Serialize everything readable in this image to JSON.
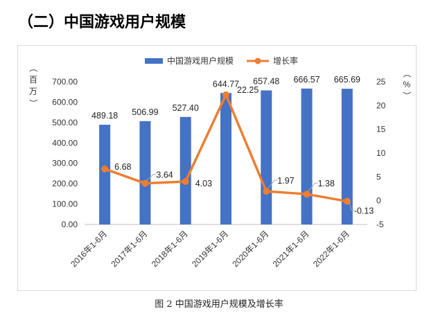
{
  "heading": "（二）中国游戏用户规模",
  "caption": "图 2 中国游戏用户规模及增长率",
  "colors": {
    "bar": "#4472c4",
    "line": "#ed7d31"
  },
  "chart_data": {
    "type": "bar+line",
    "categories": [
      "2016年1-6月",
      "2017年1-6月",
      "2018年1-6月",
      "2019年1-6月",
      "2020年1-6月",
      "2021年1-6月",
      "2022年1-6月"
    ],
    "series": [
      {
        "name": "中国游戏用户规模",
        "type": "bar",
        "axis": "left",
        "values": [
          489.18,
          506.99,
          527.4,
          644.77,
          657.48,
          666.57,
          665.69
        ],
        "labels": [
          "489.18",
          "506.99",
          "527.40",
          "644.77",
          "657.48",
          "666.57",
          "665.69"
        ]
      },
      {
        "name": "增长率",
        "type": "line",
        "axis": "right",
        "values": [
          6.68,
          3.64,
          4.03,
          22.25,
          1.97,
          1.38,
          -0.13
        ],
        "labels": [
          "6.68",
          "3.64",
          "4.03",
          "22.25",
          "1.97",
          "1.38",
          "-0.13"
        ]
      }
    ],
    "y_left": {
      "label": "（百万）",
      "min": 0,
      "max": 700,
      "ticks": [
        "0.00",
        "100.00",
        "200.00",
        "300.00",
        "400.00",
        "500.00",
        "600.00",
        "700.00"
      ]
    },
    "y_right": {
      "label": "（%）",
      "min": -5,
      "max": 25,
      "ticks": [
        "-5",
        "0",
        "5",
        "10",
        "15",
        "20",
        "25"
      ]
    },
    "legend": "top"
  }
}
